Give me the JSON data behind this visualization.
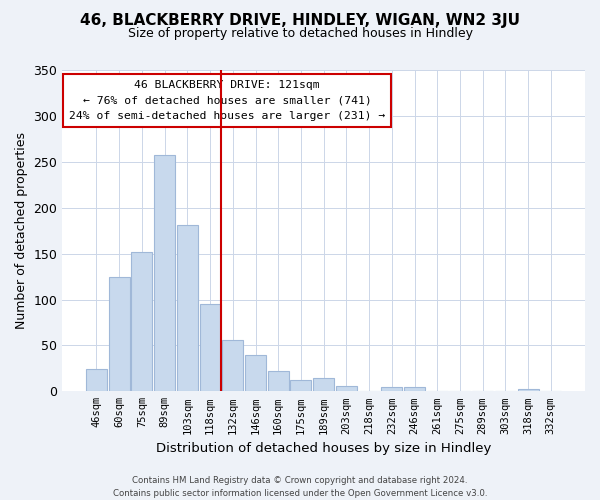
{
  "title": "46, BLACKBERRY DRIVE, HINDLEY, WIGAN, WN2 3JU",
  "subtitle": "Size of property relative to detached houses in Hindley",
  "xlabel": "Distribution of detached houses by size in Hindley",
  "ylabel": "Number of detached properties",
  "bar_labels": [
    "46sqm",
    "60sqm",
    "75sqm",
    "89sqm",
    "103sqm",
    "118sqm",
    "132sqm",
    "146sqm",
    "160sqm",
    "175sqm",
    "189sqm",
    "203sqm",
    "218sqm",
    "232sqm",
    "246sqm",
    "261sqm",
    "275sqm",
    "289sqm",
    "303sqm",
    "318sqm",
    "332sqm"
  ],
  "bar_values": [
    24,
    124,
    152,
    257,
    181,
    95,
    56,
    40,
    22,
    12,
    14,
    6,
    0,
    5,
    5,
    0,
    0,
    0,
    0,
    2,
    0
  ],
  "bar_color": "#c8d9ed",
  "bar_edge_color": "#a0b8d8",
  "vline_x": 5.5,
  "vline_color": "#cc0000",
  "ylim": [
    0,
    350
  ],
  "yticks": [
    0,
    50,
    100,
    150,
    200,
    250,
    300,
    350
  ],
  "annotation_title": "46 BLACKBERRY DRIVE: 121sqm",
  "annotation_line1": "← 76% of detached houses are smaller (741)",
  "annotation_line2": "24% of semi-detached houses are larger (231) →",
  "footer_line1": "Contains HM Land Registry data © Crown copyright and database right 2024.",
  "footer_line2": "Contains public sector information licensed under the Open Government Licence v3.0.",
  "background_color": "#eef2f8",
  "plot_bg_color": "#ffffff",
  "grid_color": "#ccd6e8"
}
